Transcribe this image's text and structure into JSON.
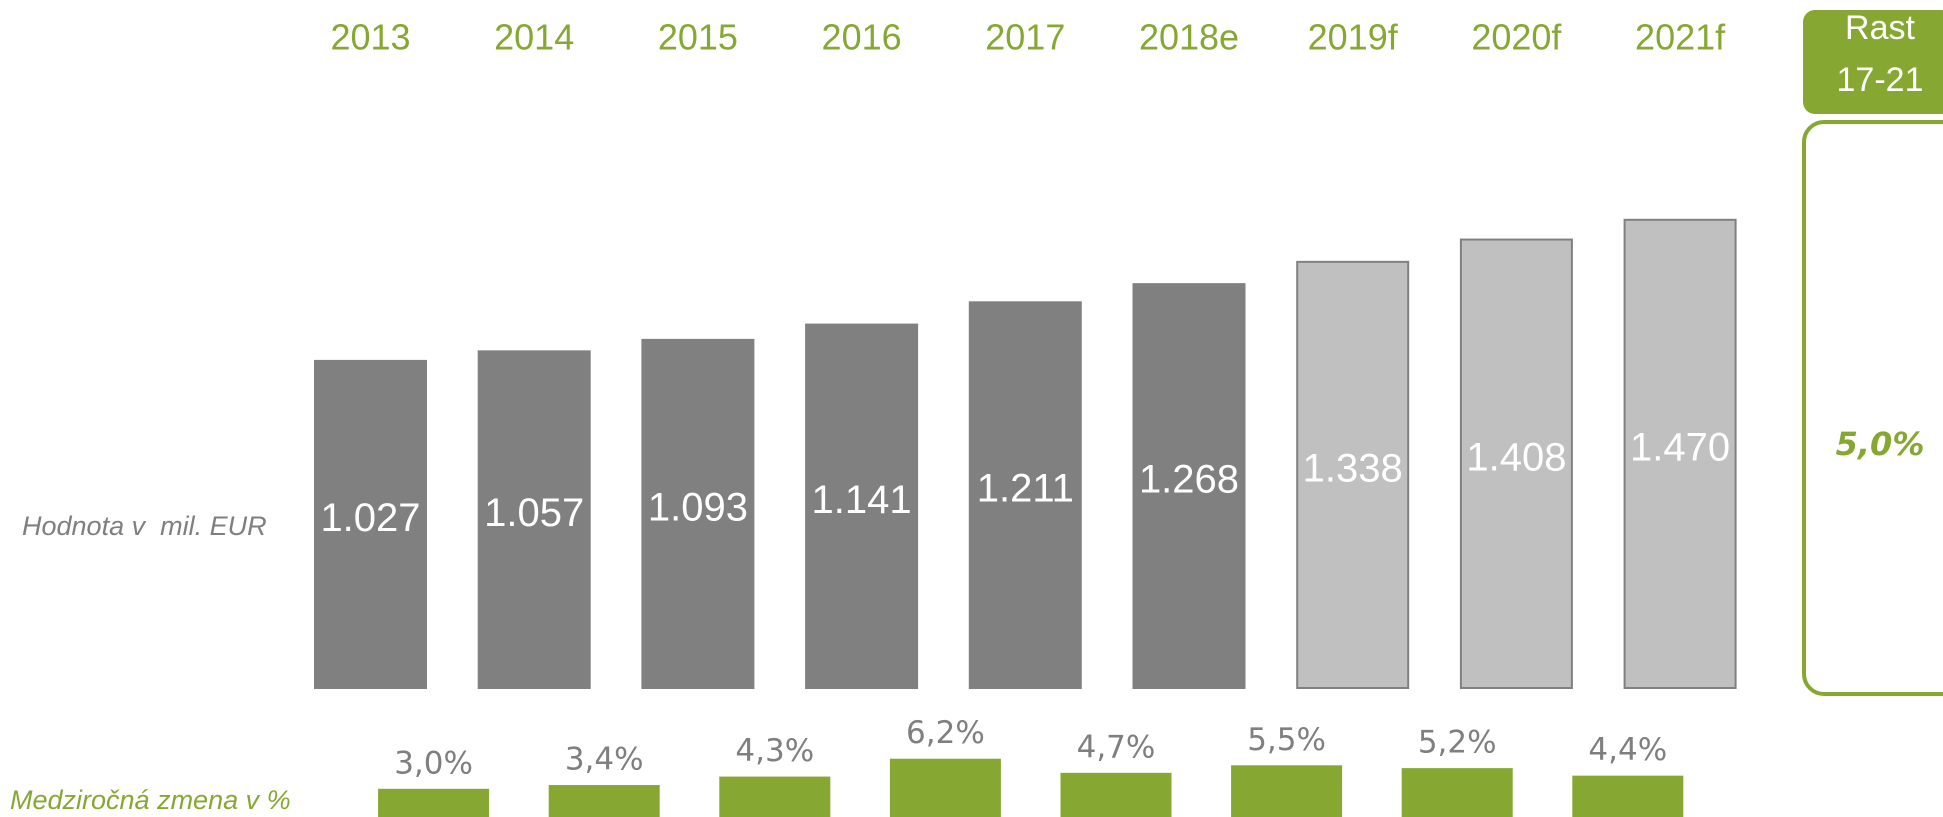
{
  "chart_data": [
    {
      "type": "bar",
      "categories": [
        "2013",
        "2014",
        "2015",
        "2016",
        "2017",
        "2018e",
        "2019f",
        "2020f",
        "2021f"
      ],
      "values": [
        1027,
        1057,
        1093,
        1141,
        1211,
        1268,
        1338,
        1408,
        1470
      ],
      "value_labels": [
        "1.027",
        "1.057",
        "1.093",
        "1.141",
        "1.211",
        "1.268",
        "1.338",
        "1.408",
        "1.470"
      ],
      "colors": [
        "#808080",
        "#808080",
        "#808080",
        "#808080",
        "#808080",
        "#808080",
        "#c0c0c0",
        "#c0c0c0",
        "#c0c0c0"
      ],
      "row_label": "Hodnota v  mil. EUR"
    },
    {
      "type": "bar",
      "values": [
        3.0,
        3.4,
        4.3,
        6.2,
        4.7,
        5.5,
        5.2,
        4.4
      ],
      "value_labels": [
        "3,0%",
        "3,4%",
        "4,3%",
        "6,2%",
        "4,7%",
        "5,5%",
        "5,2%",
        "4,4%"
      ],
      "color": "#86a832",
      "row_label": "Medziročná zmena v %"
    }
  ],
  "summary": {
    "label_lines": [
      "Rast",
      "17-21"
    ],
    "value": "5,0%"
  }
}
